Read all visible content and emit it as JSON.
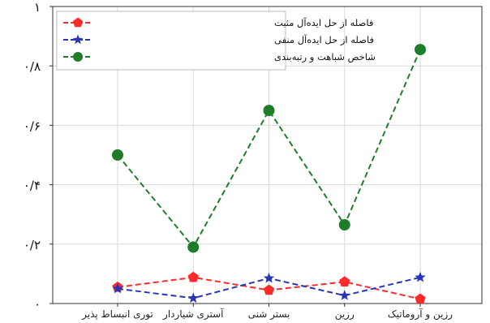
{
  "chart_data": {
    "type": "line",
    "title": "",
    "xlabel": "",
    "ylabel": "",
    "categories": [
      "توری انبساط پذیر",
      "آستری شیاردار",
      "بستر شنی",
      "رزین",
      "رزین و آروماتیک"
    ],
    "ylim": [
      0,
      1
    ],
    "yticks": [
      0,
      0.2,
      0.4,
      0.6,
      0.8,
      1
    ],
    "ytick_labels": [
      "۰",
      "۰/۲",
      "۰/۴",
      "۰/۶",
      "۰/۸",
      "۱"
    ],
    "grid": true,
    "legend_position": "top-left",
    "series": [
      {
        "name": "فاصله از حل ایده‌آل مثبت",
        "values": [
          0.055,
          0.088,
          0.045,
          0.073,
          0.015
        ],
        "color": "#ff2a2a",
        "marker": "pentagon",
        "line": "dashed"
      },
      {
        "name": "فاصله از حل ایده‌آل منفی",
        "values": [
          0.05,
          0.018,
          0.085,
          0.027,
          0.088
        ],
        "color": "#2a35b5",
        "marker": "star",
        "line": "dashed"
      },
      {
        "name": "شاخص شباهت و رتبه‌بندی",
        "values": [
          0.5,
          0.19,
          0.65,
          0.265,
          0.855
        ],
        "color": "#1e7d28",
        "marker": "circle",
        "line": "dashed"
      }
    ]
  }
}
